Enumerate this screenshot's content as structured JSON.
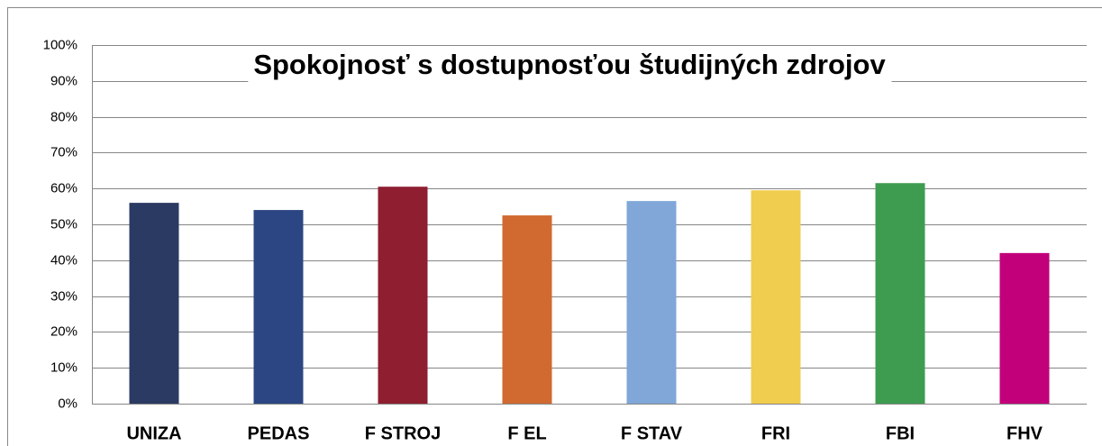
{
  "chart_data": {
    "type": "bar",
    "title": "Spokojnosť s dostupnosťou študijných zdrojov",
    "categories": [
      "UNIZA",
      "PEDAS",
      "F STROJ",
      "F EL",
      "F STAV",
      "FRI",
      "FBI",
      "FHV"
    ],
    "values": [
      56,
      54,
      60.5,
      52.5,
      56.5,
      59.5,
      61.5,
      42
    ],
    "colors": [
      "#2b3a63",
      "#2c4683",
      "#8e1e30",
      "#d06a30",
      "#80a7d8",
      "#f0cd4e",
      "#3e9c50",
      "#c2007a"
    ],
    "ylim": [
      0,
      100
    ],
    "yticks": [
      {
        "value": 0,
        "label": "0%"
      },
      {
        "value": 10,
        "label": "10%"
      },
      {
        "value": 20,
        "label": "20%"
      },
      {
        "value": 30,
        "label": "30%"
      },
      {
        "value": 40,
        "label": "40%"
      },
      {
        "value": 50,
        "label": "50%"
      },
      {
        "value": 60,
        "label": "60%"
      },
      {
        "value": 70,
        "label": "70%"
      },
      {
        "value": 80,
        "label": "80%"
      },
      {
        "value": 90,
        "label": "90%"
      },
      {
        "value": 100,
        "label": "100%"
      }
    ],
    "grid": true
  }
}
